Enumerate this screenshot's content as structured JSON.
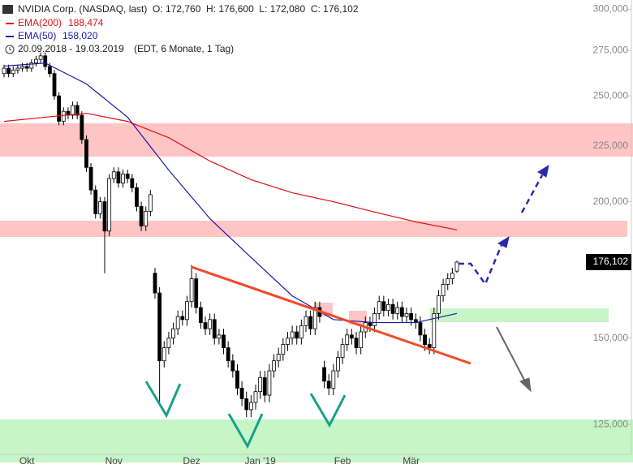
{
  "chart_data": {
    "type": "candlestick",
    "header": {
      "title": "NVIDIA Corp. (NASDAQ, last)",
      "quote": "O: 172,760  H: 176,600  L: 172,080  C: 176,102",
      "range": "20.09.2018 - 19.03.2019",
      "info": "(EDT, 6 Monate, 1 Tag)"
    },
    "categories": [
      null,
      null,
      null,
      null,
      null,
      "Okt",
      null,
      null,
      null,
      null,
      null,
      null,
      null,
      null,
      null,
      null,
      null,
      null,
      null,
      null,
      null,
      null,
      null,
      null,
      "Nov",
      null,
      null,
      null,
      null,
      null,
      null,
      null,
      null,
      null,
      null,
      null,
      null,
      null,
      null,
      null,
      null,
      "Dez",
      null,
      null,
      null,
      null,
      null,
      null,
      null,
      null,
      null,
      null,
      null,
      null,
      null,
      null,
      "Jan '19",
      null,
      null,
      null,
      null,
      null,
      null,
      null,
      null,
      null,
      null,
      null,
      null,
      null,
      null,
      null,
      null,
      null,
      "Feb",
      null,
      null,
      null,
      null,
      null,
      null,
      null,
      null,
      null,
      null,
      null,
      null,
      null,
      null,
      "Mär",
      null,
      null,
      null,
      null,
      null,
      null,
      null,
      null,
      null,
      null
    ],
    "open": [
      262,
      265,
      262,
      264,
      265,
      266,
      265,
      268,
      270,
      272,
      266,
      262,
      250,
      237,
      242,
      240,
      245,
      240,
      228,
      215,
      205,
      195,
      200,
      188,
      210,
      213,
      208,
      212,
      210,
      206,
      198,
      190,
      196,
      172,
      165,
      143,
      147,
      150,
      153,
      157,
      156,
      162,
      170,
      160,
      155,
      153,
      156,
      150,
      151,
      147,
      143,
      140,
      135,
      132,
      129,
      131,
      134,
      138,
      133,
      140,
      143,
      145,
      148,
      150,
      152,
      150,
      154,
      157,
      153,
      160,
      141,
      137,
      135,
      140,
      144,
      148,
      151,
      150,
      147,
      152,
      155,
      154,
      158,
      162,
      159,
      161,
      158,
      160,
      157,
      158,
      156,
      155,
      151,
      148,
      147,
      158,
      164,
      168,
      170,
      172.76
    ],
    "high": [
      267,
      267,
      266,
      267,
      268,
      268,
      270,
      272,
      274,
      274,
      268,
      264,
      252,
      244,
      244,
      247,
      247,
      242,
      230,
      217,
      207,
      202,
      202,
      212,
      215,
      215,
      214,
      214,
      212,
      208,
      200,
      198,
      205,
      174,
      167,
      149,
      152,
      155,
      159,
      159,
      164,
      175,
      172,
      162,
      157,
      158,
      158,
      153,
      153,
      149,
      145,
      142,
      137,
      134,
      133,
      136,
      140,
      140,
      142,
      145,
      147,
      150,
      152,
      154,
      154,
      156,
      159,
      159,
      162,
      162,
      143,
      139,
      142,
      146,
      150,
      153,
      153,
      152,
      154,
      157,
      157,
      160,
      164,
      164,
      163,
      163,
      162,
      162,
      160,
      160,
      158,
      157,
      153,
      150,
      160,
      166,
      170,
      172,
      174,
      176.6
    ],
    "low": [
      260,
      260,
      260,
      262,
      263,
      263,
      263,
      266,
      268,
      264,
      260,
      248,
      235,
      235,
      238,
      238,
      238,
      226,
      213,
      203,
      193,
      193,
      172,
      186,
      208,
      206,
      206,
      208,
      204,
      196,
      188,
      188,
      194,
      163,
      131,
      141,
      145,
      148,
      151,
      154,
      154,
      160,
      158,
      153,
      151,
      151,
      148,
      148,
      145,
      141,
      138,
      133,
      130,
      127,
      127,
      129,
      132,
      131,
      131,
      138,
      141,
      143,
      146,
      148,
      148,
      148,
      152,
      151,
      151,
      155,
      135,
      133,
      133,
      138,
      142,
      146,
      148,
      145,
      145,
      150,
      152,
      152,
      156,
      157,
      157,
      156,
      156,
      155,
      155,
      154,
      153,
      149,
      146,
      145,
      145,
      156,
      162,
      166,
      168,
      172.08
    ],
    "close": [
      265,
      262,
      264,
      265,
      266,
      265,
      268,
      270,
      272,
      266,
      262,
      250,
      237,
      242,
      240,
      245,
      240,
      228,
      215,
      205,
      195,
      200,
      188,
      210,
      213,
      208,
      212,
      210,
      206,
      198,
      190,
      196,
      203,
      165,
      143,
      147,
      150,
      153,
      157,
      156,
      162,
      170,
      160,
      155,
      153,
      156,
      150,
      151,
      147,
      143,
      140,
      135,
      132,
      129,
      131,
      134,
      138,
      133,
      140,
      143,
      145,
      148,
      150,
      152,
      150,
      154,
      157,
      153,
      160,
      157,
      137,
      135,
      140,
      144,
      148,
      151,
      150,
      147,
      152,
      155,
      154,
      158,
      162,
      159,
      161,
      158,
      160,
      157,
      158,
      156,
      155,
      151,
      148,
      147,
      158,
      164,
      168,
      170,
      172,
      176.102
    ],
    "close_label": "176,102",
    "up_color": "#ffffff",
    "down_color": "#000000",
    "indicators": [
      {
        "name": "EMA(200)",
        "color": "#dd1111",
        "value_label": "188,474",
        "x": [
          0,
          9,
          18,
          27,
          36,
          45,
          54,
          63,
          72,
          81,
          90,
          99
        ],
        "values": [
          236.9,
          239,
          241,
          236.9,
          228.9,
          217.9,
          209.5,
          203.8,
          200,
          195.7,
          191.7,
          188.474
        ]
      },
      {
        "name": "EMA(50)",
        "color": "#1a1aa8",
        "value_label": "158,020",
        "x": [
          0,
          9,
          18,
          27,
          36,
          45,
          54,
          63,
          72,
          81,
          90,
          99
        ],
        "values": [
          266.2,
          267.9,
          256.4,
          239,
          213.8,
          193,
          177.8,
          164,
          156,
          155,
          155,
          158.02
        ]
      }
    ],
    "log_scale": true,
    "ylim": [
      118,
      306
    ],
    "yticks": [
      {
        "value": 125,
        "label": "125,000"
      },
      {
        "value": 150,
        "label": "150,000"
      },
      {
        "value": 175,
        "label": "175,000"
      },
      {
        "value": 200,
        "label": "200,000"
      },
      {
        "value": 225,
        "label": "225,000"
      },
      {
        "value": 250,
        "label": "250,000"
      },
      {
        "value": 275,
        "label": "275,000"
      },
      {
        "value": 300,
        "label": "300,000"
      }
    ]
  }
}
